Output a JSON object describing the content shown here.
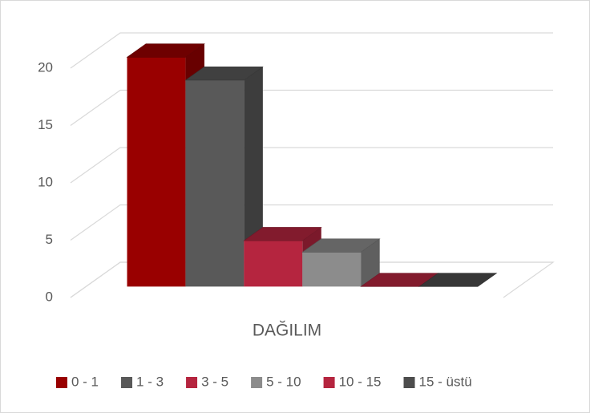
{
  "chart_data": {
    "type": "bar3d",
    "categories": [
      "DAĞILIM"
    ],
    "series": [
      {
        "name": "0 - 1",
        "color": "#990000",
        "values": [
          20
        ]
      },
      {
        "name": "1 - 3",
        "color": "#595959",
        "values": [
          18
        ]
      },
      {
        "name": "3 - 5",
        "color": "#b5253f",
        "values": [
          4
        ]
      },
      {
        "name": "5 - 10",
        "color": "#8c8c8c",
        "values": [
          3
        ]
      },
      {
        "name": "10 - 15",
        "color": "#b5253f",
        "values": [
          0
        ]
      },
      {
        "name": "15 - üstü",
        "color": "#4d4d4d",
        "values": [
          0
        ]
      }
    ],
    "ylim": [
      0,
      20
    ],
    "yticks": [
      0,
      5,
      10,
      15,
      20
    ],
    "grid": true,
    "legend": "bottom"
  }
}
